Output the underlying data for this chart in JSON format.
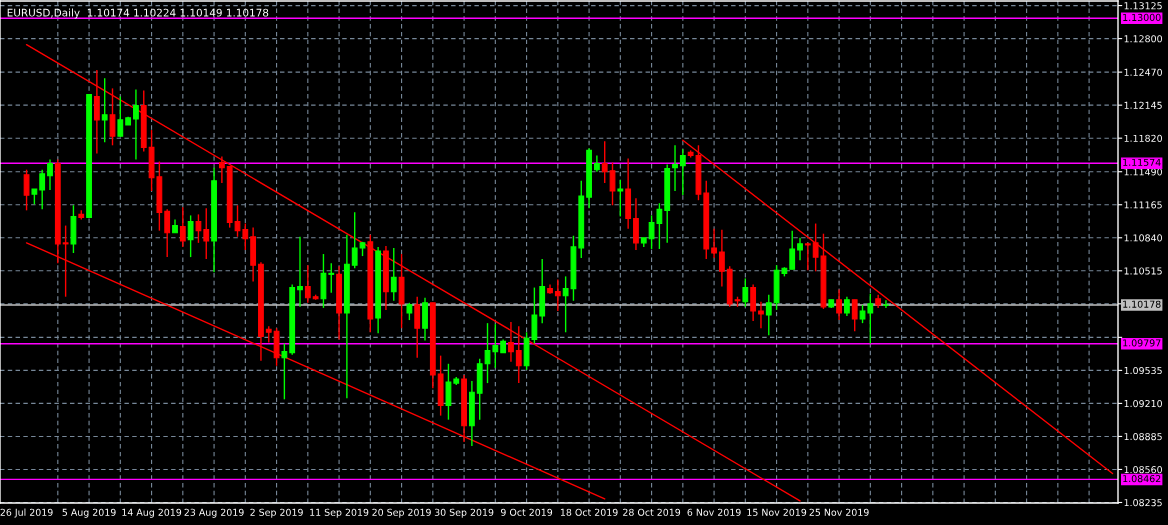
{
  "chart_data": {
    "type": "candlestick",
    "title": "EURUSD,Daily  1.10174 1.10224 1.10149 1.10178",
    "categories": [
      "26 Jul 2019",
      null,
      null,
      null,
      null,
      null,
      null,
      null,
      "5 Aug 2019",
      null,
      null,
      null,
      null,
      null,
      null,
      null,
      "14 Aug 2019",
      null,
      null,
      null,
      null,
      null,
      null,
      null,
      "23 Aug 2019",
      null,
      null,
      null,
      null,
      null,
      null,
      null,
      "2 Sep 2019",
      null,
      null,
      null,
      null,
      null,
      null,
      null,
      "11 Sep 2019",
      null,
      null,
      null,
      null,
      null,
      null,
      null,
      "20 Sep 2019",
      null,
      null,
      null,
      null,
      null,
      null,
      null,
      "30 Sep 2019",
      null,
      null,
      null,
      null,
      null,
      null,
      null,
      "9 Oct 2019",
      null,
      null,
      null,
      null,
      null,
      null,
      null,
      "18 Oct 2019",
      null,
      null,
      null,
      null,
      null,
      null,
      null,
      "28 Oct 2019",
      null,
      null,
      null,
      null,
      null,
      null,
      null,
      "6 Nov 2019",
      null,
      null,
      null,
      null,
      null,
      null,
      null,
      "15 Nov 2019",
      null,
      null,
      null,
      null,
      null,
      null,
      null,
      "25 Nov 2019",
      null,
      null,
      null,
      null,
      null,
      null,
      null,
      null,
      null,
      null,
      null,
      null,
      null,
      null,
      null,
      null,
      null,
      null,
      null,
      null,
      null,
      null,
      null,
      null,
      null,
      null,
      null,
      null,
      null,
      null,
      null,
      null,
      null,
      null,
      null
    ],
    "ohlc": [
      [
        1.1146,
        1.1151,
        1.1111,
        1.1126
      ],
      [
        1.1127,
        1.1132,
        1.1117,
        1.1132
      ],
      [
        1.1131,
        1.1151,
        1.1112,
        1.1147
      ],
      [
        1.1145,
        1.1161,
        1.1131,
        1.1157
      ],
      [
        1.1157,
        1.1161,
        1.1059,
        1.1078
      ],
      [
        1.1079,
        1.1096,
        1.1026,
        1.1078
      ],
      [
        1.1078,
        1.1116,
        1.1069,
        1.1105
      ],
      [
        1.1107,
        1.1111,
        1.1102,
        1.1104
      ],
      [
        1.1104,
        1.1225,
        1.1104,
        1.1225
      ],
      [
        1.1223,
        1.1249,
        1.1167,
        1.12
      ],
      [
        1.12,
        1.1241,
        1.1178,
        1.1205
      ],
      [
        1.1205,
        1.1231,
        1.1175,
        1.1184
      ],
      [
        1.1184,
        1.1223,
        1.1184,
        1.12
      ],
      [
        1.1195,
        1.1203,
        1.1195,
        1.1202
      ],
      [
        1.1201,
        1.123,
        1.1161,
        1.1214
      ],
      [
        1.1214,
        1.1229,
        1.1169,
        1.1173
      ],
      [
        1.1173,
        1.119,
        1.113,
        1.1143
      ],
      [
        1.1144,
        1.1159,
        1.1091,
        1.1109
      ],
      [
        1.111,
        1.1112,
        1.1065,
        1.1089
      ],
      [
        1.1089,
        1.1102,
        1.1089,
        1.1096
      ],
      [
        1.1095,
        1.1114,
        1.1075,
        1.1081
      ],
      [
        1.1082,
        1.1106,
        1.1065,
        1.11
      ],
      [
        1.11,
        1.1107,
        1.1079,
        1.1091
      ],
      [
        1.1092,
        1.1113,
        1.1063,
        1.1081
      ],
      [
        1.1081,
        1.1153,
        1.105,
        1.114
      ],
      [
        1.1158,
        1.1164,
        1.1138,
        1.1153
      ],
      [
        1.1154,
        1.1154,
        1.1094,
        1.1099
      ],
      [
        1.11,
        1.1116,
        1.1085,
        1.1091
      ],
      [
        1.1092,
        1.1098,
        1.1072,
        1.1083
      ],
      [
        1.1085,
        1.1094,
        1.1041,
        1.1057
      ],
      [
        1.1058,
        1.106,
        1.0963,
        1.0987
      ],
      [
        1.0994,
        1.0997,
        1.0981,
        1.0991
      ],
      [
        1.0992,
        1.0995,
        1.0958,
        1.0966
      ],
      [
        1.0966,
        1.098,
        1.0925,
        1.0972
      ],
      [
        1.0971,
        1.1038,
        1.0969,
        1.1035
      ],
      [
        1.1033,
        1.1085,
        1.1016,
        1.1036
      ],
      [
        1.1036,
        1.1057,
        1.102,
        1.1025
      ],
      [
        1.1026,
        1.1028,
        1.1023,
        1.1024
      ],
      [
        1.1024,
        1.1068,
        1.1015,
        1.1049
      ],
      [
        1.1048,
        1.1059,
        1.103,
        1.1049
      ],
      [
        1.1048,
        1.1056,
        1.0984,
        1.101
      ],
      [
        1.101,
        1.1087,
        1.0926,
        1.1058
      ],
      [
        1.1057,
        1.1109,
        1.1054,
        1.1074
      ],
      [
        1.1074,
        1.108,
        1.1066,
        1.1079
      ],
      [
        1.108,
        1.1087,
        1.0991,
        1.1004
      ],
      [
        1.1005,
        1.1075,
        1.099,
        1.1071
      ],
      [
        1.1071,
        1.1076,
        1.1013,
        1.1031
      ],
      [
        1.1031,
        1.1074,
        1.1022,
        1.1045
      ],
      [
        1.1045,
        1.1068,
        1.0995,
        1.1019
      ],
      [
        1.101,
        1.102,
        1.1003,
        1.1018
      ],
      [
        1.1018,
        1.1026,
        1.0966,
        1.0995
      ],
      [
        1.0995,
        1.1025,
        1.0983,
        1.102
      ],
      [
        1.102,
        1.102,
        1.0936,
        1.0949
      ],
      [
        1.095,
        1.0968,
        1.0909,
        1.0919
      ],
      [
        1.0919,
        1.096,
        1.0905,
        1.0942
      ],
      [
        1.0941,
        1.0947,
        1.0939,
        1.0945
      ],
      [
        1.0945,
        1.0949,
        1.0883,
        1.0899
      ],
      [
        1.0899,
        1.0943,
        1.0879,
        1.0932
      ],
      [
        1.0931,
        1.0965,
        1.0905,
        1.096
      ],
      [
        1.096,
        1.1,
        1.0941,
        1.0973
      ],
      [
        1.0972,
        1.0999,
        1.0956,
        1.0978
      ],
      [
        1.0971,
        1.0984,
        1.0971,
        1.0982
      ],
      [
        1.0981,
        1.1001,
        1.0962,
        1.0972
      ],
      [
        1.0973,
        1.0997,
        1.0941,
        1.0958
      ],
      [
        1.0958,
        1.0991,
        1.0954,
        1.0985
      ],
      [
        1.0984,
        1.1035,
        1.098,
        1.1008
      ],
      [
        1.1007,
        1.1063,
        1.1,
        1.1036
      ],
      [
        1.1034,
        1.1038,
        1.1029,
        1.103
      ],
      [
        1.1031,
        1.1043,
        1.1012,
        1.1027
      ],
      [
        1.1027,
        1.1046,
        1.0991,
        1.1034
      ],
      [
        1.1034,
        1.1086,
        1.1022,
        1.1075
      ],
      [
        1.1074,
        1.114,
        1.1064,
        1.1125
      ],
      [
        1.1124,
        1.1172,
        1.1113,
        1.117
      ],
      [
        1.1151,
        1.1165,
        1.1149,
        1.1157
      ],
      [
        1.1157,
        1.1179,
        1.1138,
        1.1149
      ],
      [
        1.115,
        1.1158,
        1.1116,
        1.113
      ],
      [
        1.113,
        1.1141,
        1.1105,
        1.1132
      ],
      [
        1.1132,
        1.1162,
        1.1093,
        1.1103
      ],
      [
        1.1103,
        1.1123,
        1.1072,
        1.1079
      ],
      [
        1.1079,
        1.1084,
        1.1075,
        1.1084
      ],
      [
        1.1083,
        1.1106,
        1.1073,
        1.1099
      ],
      [
        1.1098,
        1.1118,
        1.1073,
        1.1112
      ],
      [
        1.1111,
        1.1156,
        1.1079,
        1.1152
      ],
      [
        1.1153,
        1.1175,
        1.113,
        1.1156
      ],
      [
        1.1155,
        1.1171,
        1.1126,
        1.1165
      ],
      [
        1.1168,
        1.117,
        1.1163,
        1.1165
      ],
      [
        1.1165,
        1.1175,
        1.1121,
        1.1127
      ],
      [
        1.1128,
        1.114,
        1.1063,
        1.1073
      ],
      [
        1.1074,
        1.1093,
        1.1064,
        1.1069
      ],
      [
        1.107,
        1.1092,
        1.1036,
        1.1051
      ],
      [
        1.1053,
        1.1056,
        1.1016,
        1.1019
      ],
      [
        1.1023,
        1.1026,
        1.1016,
        1.1022
      ],
      [
        1.1021,
        1.1044,
        1.1016,
        1.1035
      ],
      [
        1.1035,
        1.1038,
        1.1002,
        1.1012
      ],
      [
        1.1012,
        1.1021,
        1.0995,
        1.1009
      ],
      [
        1.1008,
        1.1028,
        1.0988,
        1.102
      ],
      [
        1.102,
        1.1057,
        1.1013,
        1.1052
      ],
      [
        1.1049,
        1.1055,
        1.1046,
        1.1054
      ],
      [
        1.1053,
        1.1091,
        1.1053,
        1.1073
      ],
      [
        1.1072,
        1.1084,
        1.1062,
        1.1078
      ],
      [
        1.1078,
        1.1079,
        1.1052,
        1.1077
      ],
      [
        1.1079,
        1.1098,
        1.1051,
        1.1065
      ],
      [
        1.1066,
        1.1088,
        1.1014,
        1.1016
      ],
      [
        1.1016,
        1.1023,
        1.1015,
        1.1023
      ],
      [
        1.1023,
        1.1033,
        1.1003,
        1.101
      ],
      [
        1.101,
        1.1026,
        1.1007,
        1.1023
      ],
      [
        1.1023,
        1.1023,
        1.0992,
        1.1004
      ],
      [
        1.1004,
        1.1018,
        1.1,
        1.1012
      ],
      [
        1.101,
        1.1029,
        1.098,
        1.1019
      ],
      [
        1.1024,
        1.1028,
        1.1015,
        1.1018
      ],
      [
        1.10174,
        1.10224,
        1.10149,
        1.10178
      ],
      null,
      null,
      null,
      null,
      null,
      null,
      null,
      null,
      null,
      null,
      null,
      null,
      null,
      null,
      null,
      null,
      null,
      null,
      null,
      null,
      null,
      null,
      null,
      null,
      null,
      null,
      null,
      null,
      null
    ],
    "colors": [
      "#ff0000",
      "#00ff00",
      "#00ff00",
      "#00ff00",
      "#ff0000",
      "#ff0000",
      "#00ff00",
      "#ff0000",
      "#00ff00",
      "#ff0000",
      "#00ff00",
      "#ff0000",
      "#00ff00",
      "#00ff00",
      "#00ff00",
      "#ff0000",
      "#ff0000",
      "#ff0000",
      "#ff0000",
      "#00ff00",
      "#ff0000",
      "#00ff00",
      "#ff0000",
      "#ff0000",
      "#00ff00",
      "#ff0000",
      "#ff0000",
      "#ff0000",
      "#ff0000",
      "#ff0000",
      "#ff0000",
      "#ff0000",
      "#ff0000",
      "#00ff00",
      "#00ff00",
      "#00ff00",
      "#ff0000",
      "#ff0000",
      "#00ff00",
      "#00ff00",
      "#ff0000",
      "#00ff00",
      "#00ff00",
      "#00ff00",
      "#ff0000",
      "#00ff00",
      "#ff0000",
      "#00ff00",
      "#ff0000",
      "#00ff00",
      "#ff0000",
      "#00ff00",
      "#ff0000",
      "#ff0000",
      "#00ff00",
      "#00ff00",
      "#ff0000",
      "#00ff00",
      "#00ff00",
      "#00ff00",
      "#00ff00",
      "#00ff00",
      "#ff0000",
      "#ff0000",
      "#00ff00",
      "#00ff00",
      "#00ff00",
      "#ff0000",
      "#ff0000",
      "#00ff00",
      "#00ff00",
      "#00ff00",
      "#00ff00",
      "#00ff00",
      "#ff0000",
      "#ff0000",
      "#00ff00",
      "#ff0000",
      "#ff0000",
      "#00ff00",
      "#00ff00",
      "#00ff00",
      "#00ff00",
      "#00ff00",
      "#00ff00",
      "#ff0000",
      "#ff0000",
      "#ff0000",
      "#ff0000",
      "#ff0000",
      "#ff0000",
      "#ff0000",
      "#00ff00",
      "#ff0000",
      "#ff0000",
      "#00ff00",
      "#00ff00",
      "#00ff00",
      "#00ff00",
      "#00ff00",
      "#ff0000",
      "#ff0000",
      "#ff0000",
      "#00ff00",
      "#ff0000",
      "#00ff00",
      "#ff0000",
      "#00ff00",
      "#00ff00",
      "#ff0000",
      "#00ff00",
      null,
      null,
      null,
      null,
      null,
      null,
      null,
      null,
      null,
      null,
      null,
      null,
      null,
      null,
      null,
      null,
      null,
      null,
      null,
      null,
      null,
      null,
      null,
      null,
      null,
      null,
      null,
      null,
      null
    ],
    "series": [
      {
        "type": "line",
        "color": "#ff0000",
        "values": [
          1.1274,
          null,
          null,
          null,
          null,
          null,
          null,
          null,
          null,
          null,
          null,
          null,
          null,
          null,
          null,
          null,
          null,
          null,
          null,
          null,
          null,
          null,
          null,
          null,
          null,
          null,
          null,
          null,
          null,
          null,
          null,
          null,
          null,
          null,
          null,
          null,
          null,
          null,
          null,
          null,
          null,
          null,
          null,
          null,
          null,
          null,
          null,
          null,
          null,
          null,
          null,
          null,
          null,
          null,
          null,
          null,
          null,
          null,
          null,
          null,
          null,
          null,
          null,
          null,
          null,
          null,
          null,
          null,
          null,
          null,
          null,
          null,
          null,
          null,
          null,
          null,
          null,
          null,
          null,
          null,
          null,
          null,
          null,
          null,
          null,
          null,
          null,
          null,
          null,
          null,
          null,
          null,
          null,
          null,
          null,
          null,
          null,
          null,
          null,
          1.0825,
          null,
          null,
          null,
          null,
          null,
          null,
          null,
          null,
          null,
          null,
          null,
          null,
          null,
          null,
          null,
          null,
          null,
          null,
          null,
          null,
          null,
          null,
          null,
          null,
          null,
          null,
          null,
          null,
          null,
          null,
          null,
          null,
          null,
          null,
          null,
          null,
          null,
          null,
          null,
          null
        ]
      },
      {
        "type": "line",
        "color": "#ff0000",
        "values": [
          1.1079,
          null,
          null,
          null,
          null,
          null,
          null,
          null,
          null,
          null,
          null,
          null,
          null,
          null,
          null,
          null,
          null,
          null,
          null,
          null,
          null,
          null,
          null,
          null,
          null,
          null,
          null,
          null,
          null,
          null,
          null,
          null,
          null,
          null,
          null,
          null,
          null,
          null,
          null,
          null,
          null,
          null,
          null,
          null,
          null,
          null,
          null,
          null,
          null,
          null,
          null,
          null,
          null,
          null,
          null,
          null,
          null,
          null,
          null,
          null,
          null,
          null,
          null,
          null,
          null,
          null,
          null,
          null,
          null,
          null,
          null,
          null,
          null,
          null,
          1.0827,
          null,
          null,
          null,
          null,
          null,
          null,
          null,
          null,
          null,
          null,
          null,
          null,
          null,
          null,
          null,
          null,
          null,
          null,
          null,
          null,
          null,
          null,
          null,
          null,
          null,
          null,
          null,
          null,
          null,
          null,
          null,
          null,
          null,
          null,
          null,
          null,
          null,
          null,
          null,
          null,
          null,
          null,
          null,
          null,
          null,
          null,
          null,
          null,
          null,
          null,
          null,
          null,
          null,
          null,
          null,
          null,
          null,
          null,
          null,
          null,
          null,
          null,
          null,
          null,
          null
        ]
      },
      {
        "type": "line",
        "color": "#ff0000",
        "values": [
          null,
          null,
          null,
          null,
          null,
          null,
          null,
          null,
          null,
          null,
          null,
          null,
          null,
          null,
          null,
          null,
          null,
          null,
          null,
          null,
          null,
          null,
          null,
          null,
          null,
          null,
          null,
          null,
          null,
          null,
          null,
          null,
          null,
          null,
          null,
          null,
          null,
          null,
          null,
          null,
          null,
          null,
          null,
          null,
          null,
          null,
          null,
          null,
          null,
          null,
          null,
          null,
          null,
          null,
          null,
          null,
          null,
          null,
          null,
          null,
          null,
          null,
          null,
          null,
          null,
          null,
          null,
          null,
          null,
          null,
          null,
          null,
          null,
          null,
          null,
          null,
          null,
          null,
          null,
          null,
          null,
          null,
          null,
          null,
          1.118,
          null,
          null,
          null,
          null,
          null,
          null,
          null,
          null,
          null,
          null,
          null,
          null,
          null,
          null,
          null,
          null,
          null,
          null,
          null,
          null,
          null,
          null,
          null,
          null,
          null,
          null,
          null,
          null,
          null,
          null,
          null,
          null,
          null,
          null,
          null,
          null,
          null,
          null,
          null,
          null,
          null,
          null,
          null,
          null,
          null,
          null,
          null,
          null,
          null,
          null,
          null,
          null,
          null,
          null,
          1.0852
        ]
      }
    ],
    "ylim": [
      1.0823,
      1.1317
    ],
    "yticks": [
      {
        "value": 1.13125,
        "label": "1.13125"
      },
      {
        "value": 1.128,
        "label": "1.12800"
      },
      {
        "value": 1.1247,
        "label": "1.12470"
      },
      {
        "value": 1.12145,
        "label": "1.12145"
      },
      {
        "value": 1.1182,
        "label": "1.11820"
      },
      {
        "value": 1.1149,
        "label": "1.11490"
      },
      {
        "value": 1.11165,
        "label": "1.11165"
      },
      {
        "value": 1.1084,
        "label": "1.10840"
      },
      {
        "value": 1.10515,
        "label": "1.10515"
      },
      {
        "value": 1.1019,
        "label": null
      },
      {
        "value": 1.0986,
        "label": null
      },
      {
        "value": 1.09535,
        "label": "1.09535"
      },
      {
        "value": 1.0921,
        "label": "1.09210"
      },
      {
        "value": 1.08885,
        "label": "1.08885"
      },
      {
        "value": 1.0856,
        "label": "1.08560"
      },
      {
        "value": 1.08235,
        "label": "1.08235"
      }
    ],
    "grid": true,
    "ref_lines": [
      {
        "axis": "y",
        "value": 1.13,
        "label": "1.13000",
        "color": "#ff00ff",
        "line_style": "solid"
      },
      {
        "axis": "y",
        "value": 1.11574,
        "label": "1.11574",
        "color": "#ff00ff",
        "line_style": "solid"
      },
      {
        "axis": "y",
        "value": 1.10178,
        "label": "1.10178",
        "color": "#c0c0c0",
        "line_style": "solid"
      },
      {
        "axis": "y",
        "value": 1.09797,
        "label": "1.09797",
        "color": "#ff00ff",
        "line_style": "solid"
      },
      {
        "axis": "y",
        "value": 1.08462,
        "label": "1.08462",
        "color": "#ff00ff",
        "line_style": "solid"
      }
    ]
  }
}
